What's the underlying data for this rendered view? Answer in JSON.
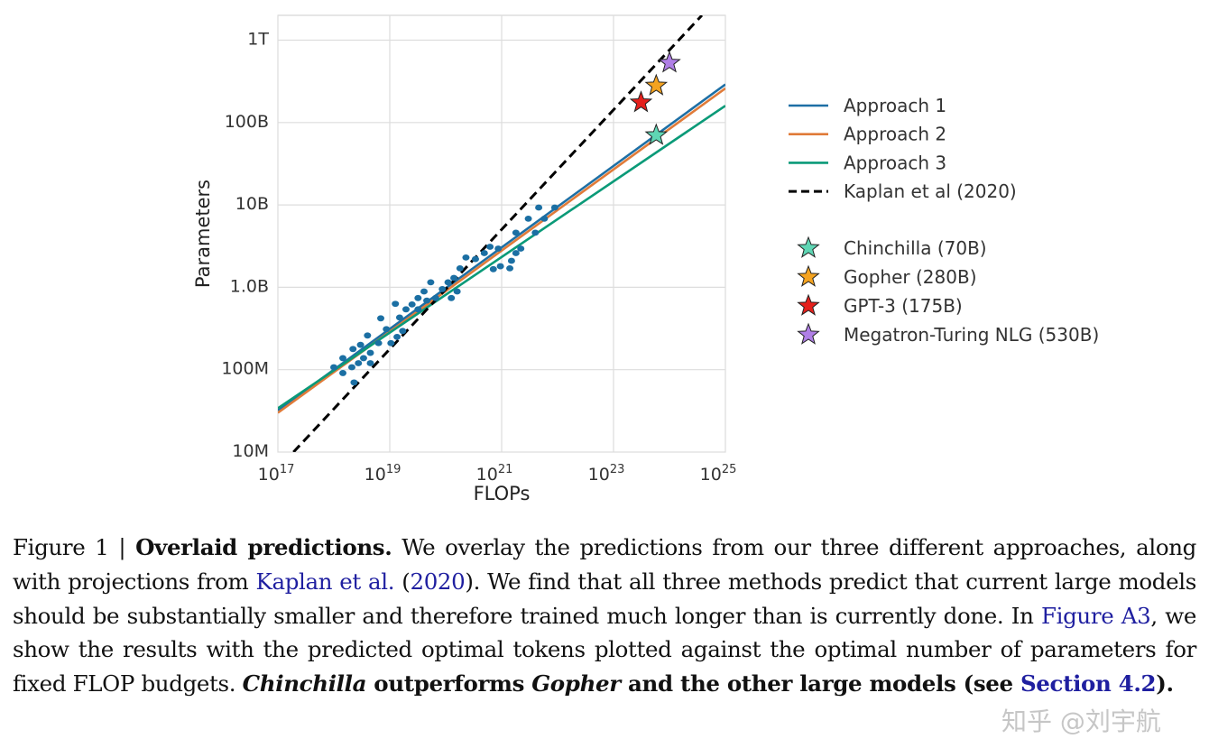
{
  "chart_data": {
    "type": "scatter",
    "title": "",
    "xlabel": "FLOPs",
    "ylabel": "Parameters",
    "xscale": "log",
    "yscale": "log",
    "xlim": [
      1e+17,
      1e+25
    ],
    "ylim": [
      10000000.0,
      2000000000000.0
    ],
    "grid": true,
    "legend_placement": "right",
    "x_ticks": [
      {
        "base": "10",
        "exp": "17",
        "value": 1e+17
      },
      {
        "base": "10",
        "exp": "19",
        "value": 1e+19
      },
      {
        "base": "10",
        "exp": "21",
        "value": 1e+21
      },
      {
        "base": "10",
        "exp": "23",
        "value": 1e+23
      },
      {
        "base": "10",
        "exp": "25",
        "value": 1e+25
      }
    ],
    "y_ticks": [
      {
        "label": "10M",
        "value": 10000000.0
      },
      {
        "label": "100M",
        "value": 100000000.0
      },
      {
        "label": "1.0B",
        "value": 1000000000.0
      },
      {
        "label": "10B",
        "value": 10000000000.0
      },
      {
        "label": "100B",
        "value": 100000000000.0
      },
      {
        "label": "1T",
        "value": 1000000000000.0
      }
    ],
    "scatter_color": "#1b6fa3",
    "scatter_points": [
      [
        1e+18,
        107000000.0
      ],
      [
        1.45e+18,
        91000000.0
      ],
      [
        2.1e+18,
        107000000.0
      ],
      [
        2.75e+18,
        120000000.0
      ],
      [
        1.45e+18,
        138000000.0
      ],
      [
        2.2e+18,
        178000000.0
      ],
      [
        3e+18,
        200000000.0
      ],
      [
        4e+18,
        260000000.0
      ],
      [
        3.4e+18,
        138000000.0
      ],
      [
        4.5e+18,
        160000000.0
      ],
      [
        6.3e+18,
        210000000.0
      ],
      [
        6.9e+18,
        420000000.0
      ],
      [
        8.7e+18,
        310000000.0
      ],
      [
        1.05e+19,
        210000000.0
      ],
      [
        1.35e+19,
        250000000.0
      ],
      [
        1.7e+19,
        295000000.0
      ],
      [
        1.26e+19,
        630000000.0
      ],
      [
        1.5e+19,
        430000000.0
      ],
      [
        1.95e+19,
        540000000.0
      ],
      [
        2.5e+19,
        620000000.0
      ],
      [
        3.2e+19,
        740000000.0
      ],
      [
        4.1e+19,
        890000000.0
      ],
      [
        5.4e+19,
        1150000000.0
      ],
      [
        3.2e+19,
        540000000.0
      ],
      [
        4.6e+19,
        690000000.0
      ],
      [
        6.6e+19,
        740000000.0
      ],
      [
        8.7e+19,
        950000000.0
      ],
      [
        1.1e+20,
        1150000000.0
      ],
      [
        1.4e+20,
        1300000000.0
      ],
      [
        1.8e+20,
        1700000000.0
      ],
      [
        1.26e+20,
        740000000.0
      ],
      [
        1.6e+20,
        890000000.0
      ],
      [
        2.3e+20,
        2300000000.0
      ],
      [
        3.4e+20,
        2200000000.0
      ],
      [
        4.9e+20,
        2600000000.0
      ],
      [
        6.2e+20,
        3100000000.0
      ],
      [
        7.1e+20,
        1660000000.0
      ],
      [
        9.5e+20,
        1800000000.0
      ],
      [
        1.4e+21,
        1700000000.0
      ],
      [
        1.5e+21,
        2100000000.0
      ],
      [
        1.8e+21,
        2600000000.0
      ],
      [
        2.2e+21,
        2950000000.0
      ],
      [
        8.7e+20,
        2950000000.0
      ],
      [
        1.8e+21,
        4600000000.0
      ],
      [
        3e+21,
        6800000000.0
      ],
      [
        4e+21,
        4600000000.0
      ],
      [
        5.8e+21,
        6800000000.0
      ],
      [
        4.6e+21,
        9300000000.0
      ],
      [
        8.9e+21,
        9300000000.0
      ],
      [
        2.3e+18,
        70000000.0
      ],
      [
        4.5e+18,
        120000000.0
      ]
    ],
    "series": [
      {
        "name": "Approach 1",
        "color": "#1d6fa5",
        "style": "solid",
        "x": [
          1e+17,
          1e+25
        ],
        "y": [
          32000000.0,
          290000000000.0
        ]
      },
      {
        "name": "Approach 2",
        "color": "#e07b39",
        "style": "solid",
        "x": [
          1e+17,
          1e+25
        ],
        "y": [
          30000000.0,
          260000000000.0
        ]
      },
      {
        "name": "Approach 3",
        "color": "#0a9a78",
        "style": "solid",
        "x": [
          1e+17,
          1e+25
        ],
        "y": [
          34000000.0,
          160000000000.0
        ]
      },
      {
        "name": "Kaplan et al (2020)",
        "color": "#000000",
        "style": "dashed",
        "x": [
          1.9e+17,
          3.8e+24
        ],
        "y": [
          10000000.0,
          2000000000000.0
        ]
      }
    ],
    "models": [
      {
        "name": "Chinchilla (70B)",
        "color": "#5fd6b4",
        "x": 5.8e+23,
        "y": 70000000000.0
      },
      {
        "name": "Gopher (280B)",
        "color": "#f4a320",
        "x": 5.8e+23,
        "y": 280000000000.0
      },
      {
        "name": "GPT-3 (175B)",
        "color": "#e5201c",
        "x": 3.1e+23,
        "y": 175000000000.0
      },
      {
        "name": "Megatron-Turing NLG (530B)",
        "color": "#b07fe6",
        "x": 1e+24,
        "y": 530000000000.0
      }
    ]
  },
  "caption": {
    "fig_label": "Figure 1 | ",
    "title": "Overlaid predictions.",
    "t1": " We overlay the predictions from our three different approaches, along with projections from ",
    "kaplan_link": "Kaplan et al.",
    "t2": " (",
    "year_link": "2020",
    "t3": "). We find that all three methods predict that current large models should be substantially smaller and therefore trained much longer than is currently done. In ",
    "fig_link": "Figure A3",
    "t4": ", we show the results with the predicted optimal tokens plotted against the optimal number of parameters for fixed FLOP budgets. ",
    "chinchilla": "Chinchilla",
    "b1": " outperforms ",
    "gopher": "Gopher",
    "b2": " and the other large models (see ",
    "section_link": "Section 4.2",
    "b3": ")."
  },
  "watermark": "知乎 @刘宇航"
}
